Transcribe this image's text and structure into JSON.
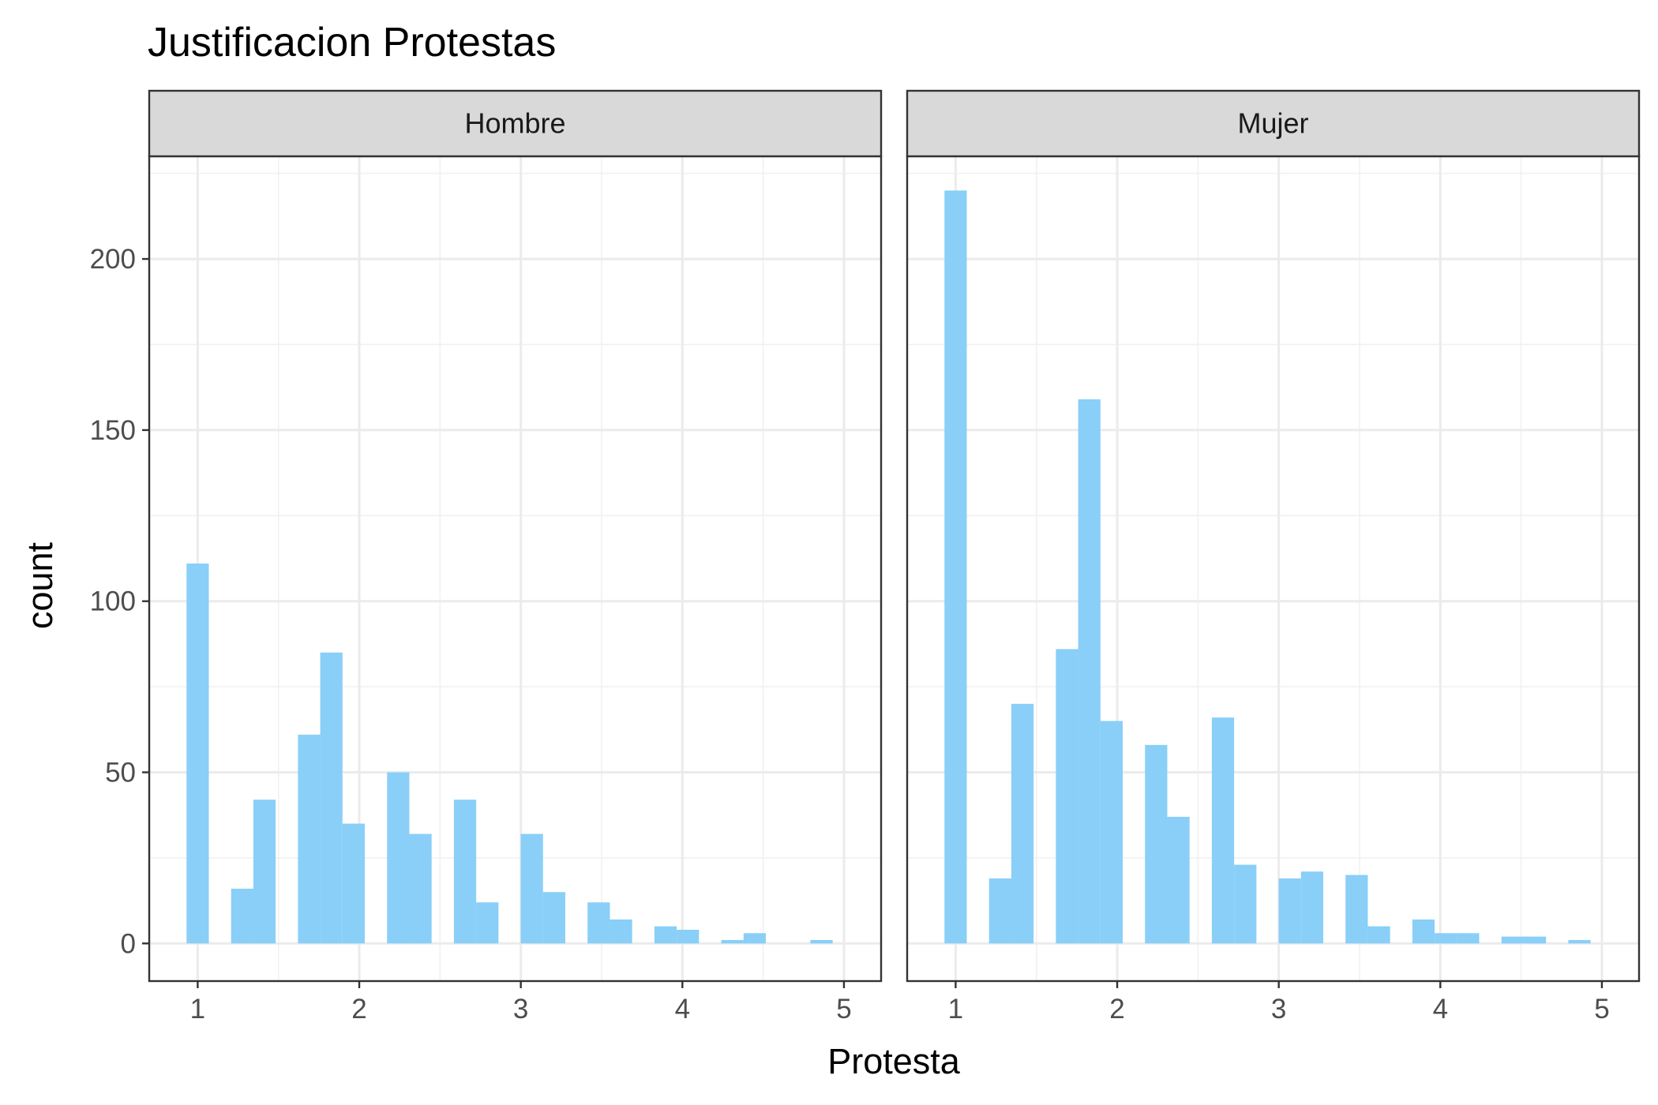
{
  "chart_data": {
    "type": "bar",
    "title": "Justificacion Protestas",
    "xlabel": "Protesta",
    "ylabel": "count",
    "xlim": [
      0.7,
      5.23
    ],
    "ylim": [
      -11,
      230
    ],
    "x_ticks": [
      "1",
      "2",
      "3",
      "4",
      "5"
    ],
    "y_ticks": [
      "0",
      "50",
      "100",
      "150",
      "200"
    ],
    "grid": true,
    "bar_color": "#89CFF8",
    "bin_width": 0.1379,
    "bin_start": 0.931,
    "panels": [
      {
        "label": "Hombre",
        "values": [
          111,
          0,
          16,
          42,
          0,
          61,
          85,
          35,
          0,
          50,
          32,
          0,
          42,
          12,
          0,
          32,
          15,
          0,
          12,
          7,
          0,
          5,
          4,
          0,
          1,
          3,
          0,
          0,
          1
        ]
      },
      {
        "label": "Mujer",
        "values": [
          220,
          0,
          19,
          70,
          0,
          86,
          159,
          65,
          0,
          58,
          37,
          0,
          66,
          23,
          0,
          19,
          21,
          0,
          20,
          5,
          0,
          7,
          3,
          3,
          0,
          2,
          2,
          0,
          1
        ]
      }
    ]
  }
}
